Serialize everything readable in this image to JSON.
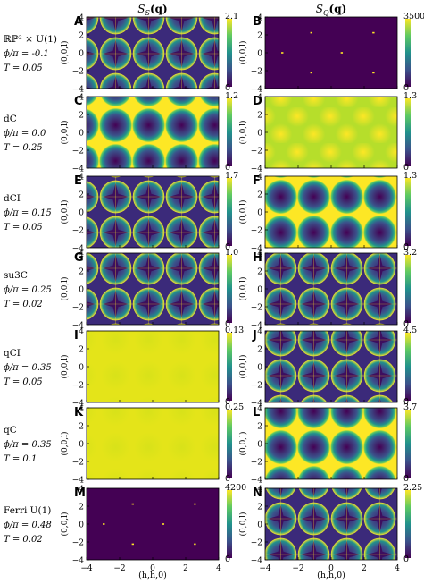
{
  "figure": {
    "col_titles": [
      "S_S(q)",
      "S_Q(q)"
    ],
    "col_title_main": "S",
    "col_title_subs": [
      "S",
      "Q"
    ],
    "col_title_arg": "(q)",
    "ylabel": "(0,0,l)",
    "xlabel": "(h,h,0)",
    "x_ticks": [
      "−4",
      "−2",
      "0",
      "2",
      "4"
    ],
    "y_ticks": [
      "4",
      "2",
      "0",
      "−2",
      "−4"
    ],
    "rows": [
      {
        "name": "ℝℙ² × U(1)",
        "phi": "ϕ/π = -0.1",
        "T": "T = 0.05"
      },
      {
        "name": "dC",
        "phi": "ϕ/π = 0.0",
        "T": "T = 0.25"
      },
      {
        "name": "dCI",
        "phi": "ϕ/π = 0.15",
        "T": "T = 0.05"
      },
      {
        "name": "su3C",
        "phi": "ϕ/π = 0.25",
        "T": "T = 0.02"
      },
      {
        "name": "qCI",
        "phi": "ϕ/π = 0.35",
        "T": "T = 0.05"
      },
      {
        "name": "qC",
        "phi": "ϕ/π = 0.35",
        "T": "T = 0.1"
      },
      {
        "name": "Ferri U(1)",
        "phi": "ϕ/π = 0.48",
        "T": "T = 0.02"
      }
    ],
    "panels": [
      {
        "letter": "A",
        "cbar_max": "2.1",
        "cbar_min": "0",
        "pattern": "star"
      },
      {
        "letter": "B",
        "cbar_max": "3500",
        "cbar_min": "0",
        "pattern": "bragg"
      },
      {
        "letter": "C",
        "cbar_max": "1.2",
        "cbar_min": "0",
        "pattern": "circles"
      },
      {
        "letter": "D",
        "cbar_max": "1.3",
        "cbar_min": "0",
        "pattern": "soft"
      },
      {
        "letter": "E",
        "cbar_max": "1.7",
        "cbar_min": "0",
        "pattern": "star"
      },
      {
        "letter": "F",
        "cbar_max": "1.3",
        "cbar_min": "0",
        "pattern": "circles"
      },
      {
        "letter": "G",
        "cbar_max": "1.0",
        "cbar_min": "0",
        "pattern": "star"
      },
      {
        "letter": "H",
        "cbar_max": "3.2",
        "cbar_min": "0",
        "pattern": "star"
      },
      {
        "letter": "I",
        "cbar_max": "0.13",
        "cbar_min": "0",
        "pattern": "flat"
      },
      {
        "letter": "J",
        "cbar_max": "4.5",
        "cbar_min": "0",
        "pattern": "star"
      },
      {
        "letter": "K",
        "cbar_max": "0.25",
        "cbar_min": "0",
        "pattern": "flat"
      },
      {
        "letter": "L",
        "cbar_max": "3.7",
        "cbar_min": "0",
        "pattern": "circles"
      },
      {
        "letter": "M",
        "cbar_max": "4200",
        "cbar_min": "0",
        "pattern": "bragg"
      },
      {
        "letter": "N",
        "cbar_max": "2.25",
        "cbar_min": "0",
        "pattern": "star"
      }
    ],
    "colors": {
      "low": "#440154",
      "mid": "#21918c",
      "high": "#fde725"
    }
  },
  "chart_data": {
    "type": "heatmap",
    "x_range": [
      -4,
      4
    ],
    "y_range": [
      -4,
      4
    ],
    "colormap": "viridis",
    "panels": [
      {
        "label": "A",
        "quantity": "S_S(q)",
        "color_range": [
          0,
          2.1
        ]
      },
      {
        "label": "B",
        "quantity": "S_Q(q)",
        "color_range": [
          0,
          3500
        ]
      },
      {
        "label": "C",
        "quantity": "S_S(q)",
        "color_range": [
          0,
          1.2
        ]
      },
      {
        "label": "D",
        "quantity": "S_Q(q)",
        "color_range": [
          0,
          1.3
        ]
      },
      {
        "label": "E",
        "quantity": "S_S(q)",
        "color_range": [
          0,
          1.7
        ]
      },
      {
        "label": "F",
        "quantity": "S_Q(q)",
        "color_range": [
          0,
          1.3
        ]
      },
      {
        "label": "G",
        "quantity": "S_S(q)",
        "color_range": [
          0,
          1.0
        ]
      },
      {
        "label": "H",
        "quantity": "S_Q(q)",
        "color_range": [
          0,
          3.2
        ]
      },
      {
        "label": "I",
        "quantity": "S_S(q)",
        "color_range": [
          0,
          0.13
        ]
      },
      {
        "label": "J",
        "quantity": "S_Q(q)",
        "color_range": [
          0,
          4.5
        ]
      },
      {
        "label": "K",
        "quantity": "S_S(q)",
        "color_range": [
          0,
          0.25
        ]
      },
      {
        "label": "L",
        "quantity": "S_Q(q)",
        "color_range": [
          0,
          3.7
        ]
      },
      {
        "label": "M",
        "quantity": "S_S(q)",
        "color_range": [
          0,
          4200
        ]
      },
      {
        "label": "N",
        "quantity": "S_Q(q)",
        "color_range": [
          0,
          2.25
        ]
      }
    ]
  }
}
